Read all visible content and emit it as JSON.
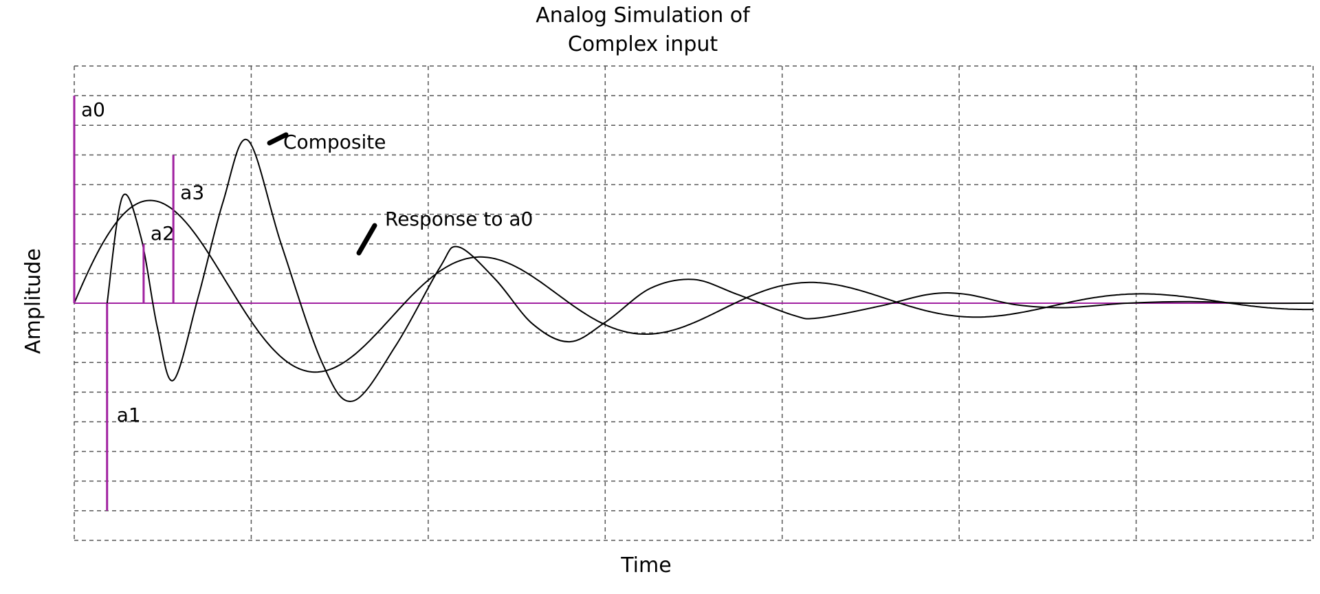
{
  "chart_data": {
    "type": "line",
    "title_lines": [
      "Analog Simulation of",
      "Complex input"
    ],
    "xlabel": "Time",
    "ylabel": "Amplitude",
    "xlim": [
      0,
      1
    ],
    "ylim": [
      -8,
      8
    ],
    "x_gridlines": 7,
    "y_gridlines": 16,
    "grid": true,
    "series": [
      {
        "label": "Response to a0",
        "color": "#000000",
        "start": 0,
        "amplitude": 4.2,
        "decay": 3.0,
        "half_period": 0.1333
      },
      {
        "label": "Composite",
        "color": "#000000",
        "start": 0.0265,
        "points": [
          [
            0.0265,
            0
          ],
          [
            0.039,
            3.6
          ],
          [
            0.054,
            2.2
          ],
          [
            0.067,
            -0.8
          ],
          [
            0.08,
            -2.6
          ],
          [
            0.1,
            0.2
          ],
          [
            0.12,
            3.4
          ],
          [
            0.14,
            5.5
          ],
          [
            0.167,
            2.0
          ],
          [
            0.2,
            -2.0
          ],
          [
            0.225,
            -3.3
          ],
          [
            0.26,
            -1.4
          ],
          [
            0.295,
            1.2
          ],
          [
            0.31,
            1.9
          ],
          [
            0.34,
            0.8
          ],
          [
            0.37,
            -0.7
          ],
          [
            0.4,
            -1.3
          ],
          [
            0.43,
            -0.6
          ],
          [
            0.465,
            0.5
          ],
          [
            0.5,
            0.8
          ],
          [
            0.535,
            0.3
          ],
          [
            0.58,
            -0.4
          ],
          [
            0.6,
            -0.5
          ],
          [
            0.65,
            -0.1
          ],
          [
            0.69,
            0.3
          ],
          [
            0.72,
            0.3
          ],
          [
            0.76,
            -0.05
          ],
          [
            0.8,
            -0.15
          ],
          [
            0.85,
            0
          ],
          [
            0.9,
            0.05
          ],
          [
            0.95,
            0
          ],
          [
            1.0,
            0
          ]
        ]
      }
    ],
    "impulses": [
      {
        "label": "a0",
        "x": 0.0,
        "value": 7.0
      },
      {
        "label": "a1",
        "x": 0.0265,
        "value": -7.0
      },
      {
        "label": "a2",
        "x": 0.056,
        "value": 2.0
      },
      {
        "label": "a3",
        "x": 0.08,
        "value": 5.0
      }
    ],
    "impulse_color": "#a020a0",
    "baseline_color": "#a020a0",
    "annotations": [
      {
        "text": "Composite",
        "target": "Composite"
      },
      {
        "text": "Response to a0",
        "target": "Response to a0"
      }
    ]
  }
}
